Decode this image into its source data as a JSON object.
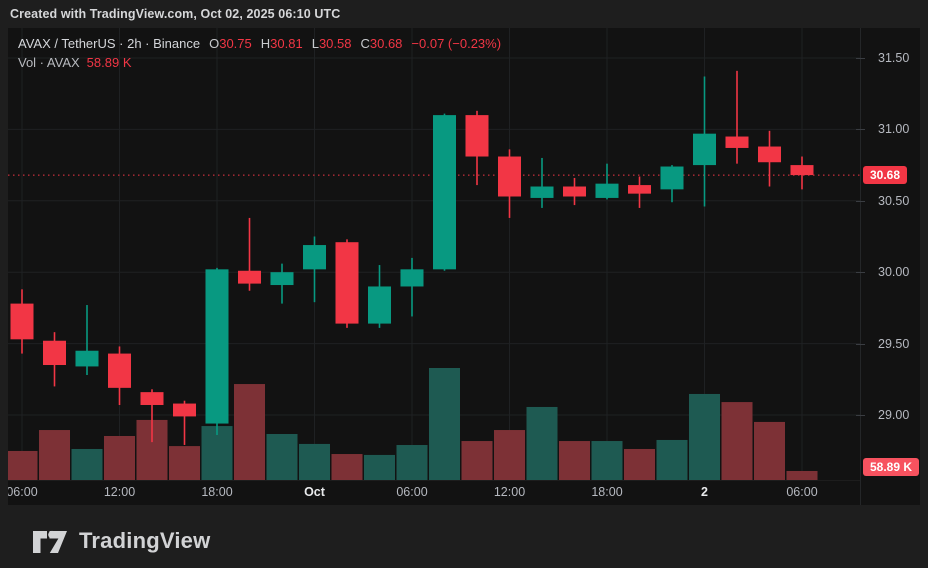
{
  "header": {
    "attribution": "Created with TradingView.com, Oct 02, 2025 06:10 UTC"
  },
  "legend": {
    "symbol": "AVAX / TetherUS · 2h · Binance",
    "ohlc": [
      {
        "label": "O",
        "value": "30.75"
      },
      {
        "label": "H",
        "value": "30.81"
      },
      {
        "label": "L",
        "value": "30.58"
      },
      {
        "label": "C",
        "value": "30.68"
      }
    ],
    "change": "−0.07 (−0.23%)",
    "volume_label": "Vol · AVAX",
    "volume_value": "58.89 K"
  },
  "price_axis": {
    "ticks": [
      "31.50",
      "31.00",
      "30.50",
      "30.00",
      "29.50",
      "29.00"
    ],
    "last_price_badge": "30.68",
    "volume_badge": "58.89 K"
  },
  "time_axis": {
    "labels": [
      {
        "text": "06:00",
        "index": 0,
        "major": false
      },
      {
        "text": "12:00",
        "index": 3,
        "major": false
      },
      {
        "text": "18:00",
        "index": 6,
        "major": false
      },
      {
        "text": "Oct",
        "index": 9,
        "major": true
      },
      {
        "text": "06:00",
        "index": 12,
        "major": false
      },
      {
        "text": "12:00",
        "index": 15,
        "major": false
      },
      {
        "text": "18:00",
        "index": 18,
        "major": false
      },
      {
        "text": "2",
        "index": 21,
        "major": true
      },
      {
        "text": "06:00",
        "index": 24,
        "major": false
      }
    ]
  },
  "footer": {
    "brand": "TradingView"
  },
  "colors": {
    "up": "#089981",
    "down": "#F23645",
    "volume_up": "#1E5A52",
    "volume_down": "#7D3136",
    "grid": "#1F2123",
    "chart_bg": "#121212",
    "outer_bg": "#1E1E1E",
    "axis_text": "#B6B9C0",
    "badge_price_bg": "#F23645",
    "badge_volume_bg": "#F7525F",
    "last_price_line": "#F23645"
  },
  "chart_data": {
    "type": "candlestick",
    "title": "AVAX / TetherUS · 2h · Binance",
    "symbol": "AVAX/TetherUS",
    "interval": "2h",
    "exchange": "Binance",
    "ylim": [
      28.55,
      31.71
    ],
    "price_gridlines": [
      31.5,
      31.0,
      30.5,
      30.0,
      29.5,
      29.0
    ],
    "last_price": 30.68,
    "volume_unit": "K",
    "legend_position": "top-left",
    "candles": [
      {
        "o": 29.78,
        "h": 29.88,
        "l": 29.43,
        "c": 29.53,
        "v": 190
      },
      {
        "o": 29.52,
        "h": 29.58,
        "l": 29.2,
        "c": 29.35,
        "v": 327
      },
      {
        "o": 29.34,
        "h": 29.77,
        "l": 29.28,
        "c": 29.45,
        "v": 203
      },
      {
        "o": 29.43,
        "h": 29.48,
        "l": 29.07,
        "c": 29.19,
        "v": 288
      },
      {
        "o": 29.16,
        "h": 29.18,
        "l": 28.81,
        "c": 29.07,
        "v": 393
      },
      {
        "o": 29.08,
        "h": 29.1,
        "l": 28.79,
        "c": 28.99,
        "v": 222
      },
      {
        "o": 28.94,
        "h": 30.03,
        "l": 28.86,
        "c": 30.02,
        "v": 353
      },
      {
        "o": 30.01,
        "h": 30.38,
        "l": 29.87,
        "c": 29.92,
        "v": 628
      },
      {
        "o": 29.91,
        "h": 30.06,
        "l": 29.78,
        "c": 30.0,
        "v": 301
      },
      {
        "o": 30.02,
        "h": 30.25,
        "l": 29.79,
        "c": 30.19,
        "v": 236
      },
      {
        "o": 30.21,
        "h": 30.23,
        "l": 29.61,
        "c": 29.64,
        "v": 170
      },
      {
        "o": 29.64,
        "h": 30.05,
        "l": 29.61,
        "c": 29.9,
        "v": 164
      },
      {
        "o": 29.9,
        "h": 30.1,
        "l": 29.69,
        "c": 30.02,
        "v": 229
      },
      {
        "o": 30.02,
        "h": 31.11,
        "l": 30.01,
        "c": 31.1,
        "v": 733
      },
      {
        "o": 31.1,
        "h": 31.13,
        "l": 30.61,
        "c": 30.81,
        "v": 255
      },
      {
        "o": 30.81,
        "h": 30.86,
        "l": 30.38,
        "c": 30.53,
        "v": 327
      },
      {
        "o": 30.52,
        "h": 30.8,
        "l": 30.45,
        "c": 30.6,
        "v": 478
      },
      {
        "o": 30.6,
        "h": 30.66,
        "l": 30.47,
        "c": 30.53,
        "v": 255
      },
      {
        "o": 30.52,
        "h": 30.76,
        "l": 30.51,
        "c": 30.62,
        "v": 255
      },
      {
        "o": 30.61,
        "h": 30.67,
        "l": 30.45,
        "c": 30.55,
        "v": 203
      },
      {
        "o": 30.58,
        "h": 30.75,
        "l": 30.49,
        "c": 30.74,
        "v": 262
      },
      {
        "o": 30.75,
        "h": 31.37,
        "l": 30.46,
        "c": 30.97,
        "v": 563
      },
      {
        "o": 30.95,
        "h": 31.41,
        "l": 30.76,
        "c": 30.87,
        "v": 510
      },
      {
        "o": 30.88,
        "h": 30.99,
        "l": 30.6,
        "c": 30.77,
        "v": 380
      },
      {
        "o": 30.75,
        "h": 30.81,
        "l": 30.58,
        "c": 30.68,
        "v": 59
      }
    ]
  }
}
